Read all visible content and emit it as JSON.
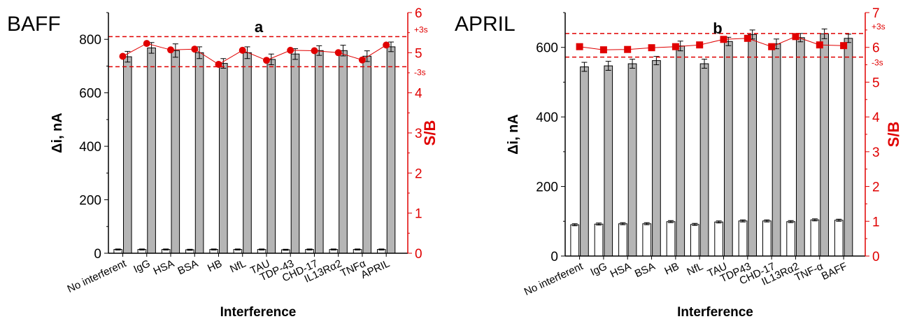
{
  "colors": {
    "axis": "#000000",
    "right_axis": "#e00000",
    "bar_blank": "#ffffff",
    "bar_sample": "#b5b5b5",
    "series_line": "#e00000",
    "threshold": "#e00000"
  },
  "chart_data": [
    {
      "type": "bar",
      "panel_label": "a",
      "corner_label": "BAFF",
      "xlabel": "Interference",
      "ylabel": "Δi, nA",
      "y2label": "S/B",
      "ylim": [
        0,
        900
      ],
      "yticks": [
        0,
        200,
        400,
        600,
        800
      ],
      "y2lim": [
        0,
        6
      ],
      "y2ticks": [
        0,
        1,
        2,
        3,
        4,
        5,
        6
      ],
      "grid": false,
      "categories": [
        "No interferent",
        "IgG",
        "HSA",
        "BSA",
        "HB",
        "NfL",
        "TAU",
        "TDP-43",
        "CHD-17",
        "IL13Rα2",
        "TNFα",
        "APRIL"
      ],
      "series": [
        {
          "axis": "left",
          "kind": "bar",
          "style": "white",
          "values": [
            14,
            14,
            14,
            13,
            14,
            14,
            14,
            13,
            14,
            14,
            14,
            14
          ],
          "errors": [
            2,
            2,
            2,
            2,
            2,
            2,
            2,
            2,
            2,
            2,
            2,
            2
          ]
        },
        {
          "axis": "left",
          "kind": "bar",
          "style": "gray",
          "values": [
            735,
            768,
            758,
            750,
            710,
            750,
            725,
            745,
            758,
            758,
            737,
            772
          ],
          "errors": [
            20,
            20,
            25,
            22,
            18,
            22,
            20,
            20,
            18,
            20,
            20,
            18
          ]
        },
        {
          "axis": "right",
          "kind": "line",
          "marker": "circle",
          "values": [
            4.91,
            5.23,
            5.07,
            5.09,
            4.71,
            5.06,
            4.81,
            5.06,
            5.05,
            5.0,
            4.82,
            5.19
          ]
        }
      ],
      "thresholds": [
        {
          "label": "+3s",
          "value": 5.4
        },
        {
          "label": "-3s",
          "value": 4.65
        }
      ]
    },
    {
      "type": "bar",
      "panel_label": "b",
      "corner_label": "APRIL",
      "xlabel": "Interference",
      "ylabel": "Δi, nA",
      "y2label": "S/B",
      "ylim": [
        0,
        700
      ],
      "yticks": [
        0,
        200,
        400,
        600
      ],
      "y2lim": [
        0,
        7
      ],
      "y2ticks": [
        0,
        1,
        2,
        3,
        4,
        5,
        6,
        7
      ],
      "grid": false,
      "categories": [
        "No interferent",
        "IgG",
        "HSA",
        "BSA",
        "HB",
        "NfL",
        "TAU",
        "TDP43",
        "CHD-17",
        "IL13Rα2",
        "TNF-α",
        "BAFF"
      ],
      "series": [
        {
          "axis": "left",
          "kind": "bar",
          "style": "white",
          "values": [
            90,
            92,
            93,
            93,
            99,
            91,
            98,
            101,
            101,
            99,
            104,
            103
          ],
          "errors": [
            3,
            3,
            3,
            3,
            3,
            3,
            3,
            3,
            3,
            3,
            3,
            3
          ]
        },
        {
          "axis": "left",
          "kind": "bar",
          "style": "gray",
          "values": [
            544,
            547,
            553,
            562,
            604,
            553,
            617,
            637,
            610,
            628,
            639,
            626
          ],
          "errors": [
            13,
            13,
            13,
            12,
            14,
            13,
            12,
            13,
            14,
            12,
            14,
            12
          ]
        },
        {
          "axis": "right",
          "kind": "line",
          "marker": "square",
          "values": [
            6.02,
            5.93,
            5.94,
            5.99,
            6.02,
            6.07,
            6.23,
            6.26,
            6.02,
            6.31,
            6.07,
            6.05
          ]
        }
      ],
      "thresholds": [
        {
          "label": "+3s",
          "value": 6.4
        },
        {
          "label": "-3s",
          "value": 5.72
        }
      ]
    }
  ]
}
